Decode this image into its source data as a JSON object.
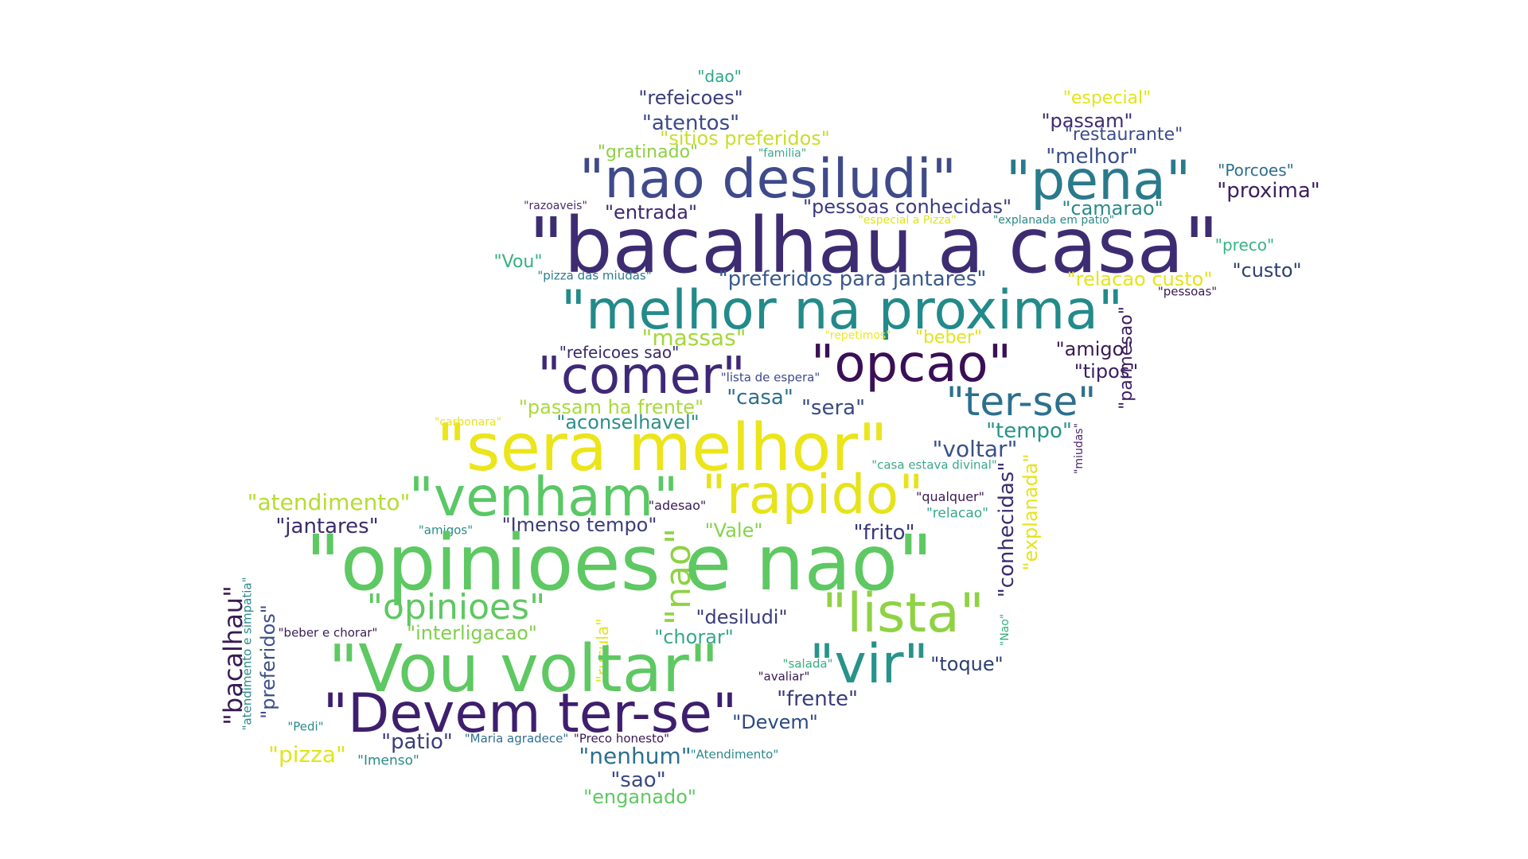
{
  "words": [
    {
      "text": "\"dao\"",
      "color": "#2aa88a"
    },
    {
      "text": "\"refeicoes\"",
      "color": "#3a3d7a"
    },
    {
      "text": "\"especial\"",
      "color": "#e2e41a"
    },
    {
      "text": "\"atentos\"",
      "color": "#3b4a86"
    },
    {
      "text": "\"passam\"",
      "color": "#3f2a70"
    },
    {
      "text": "\"sitios preferidos\"",
      "color": "#c8df2a"
    },
    {
      "text": "\"restaurante\"",
      "color": "#3d4c8a"
    },
    {
      "text": "\"gratinado\"",
      "color": "#8fcf45"
    },
    {
      "text": "\"familia\"",
      "color": "#3aa98a"
    },
    {
      "text": "\"melhor\"",
      "color": "#3b4f8a"
    },
    {
      "text": "\"nao desiludi\"",
      "color": "#3f4a8a"
    },
    {
      "text": "\"pena\"",
      "color": "#2a7a8c"
    },
    {
      "text": "\"Porcoes\"",
      "color": "#2f6f8e"
    },
    {
      "text": "\"proxima\"",
      "color": "#3b1f5e"
    },
    {
      "text": "\"razoaveis\"",
      "color": "#4a2a6a"
    },
    {
      "text": "\"entrada\"",
      "color": "#3d2870"
    },
    {
      "text": "\"pessoas conhecidas\"",
      "color": "#3b3a7e"
    },
    {
      "text": "\"camarao\"",
      "color": "#2a8a8a"
    },
    {
      "text": "\"especial a Pizza\"",
      "color": "#dfe21c"
    },
    {
      "text": "\"explanada em patio\"",
      "color": "#2a8a86"
    },
    {
      "text": "\"bacalhau a casa\"",
      "color": "#3e2c72"
    },
    {
      "text": "\"preco\"",
      "color": "#35b583"
    },
    {
      "text": "\"Vou\"",
      "color": "#35b07f"
    },
    {
      "text": "\"pizza das miudas\"",
      "color": "#2f7c8c"
    },
    {
      "text": "\"preferidos para jantares\"",
      "color": "#3a5a8a"
    },
    {
      "text": "\"relacao custo\"",
      "color": "#e6e31a"
    },
    {
      "text": "\"custo\"",
      "color": "#2c3f72"
    },
    {
      "text": "\"pessoas\"",
      "color": "#3a1a55"
    },
    {
      "text": "\"melhor na proxima\"",
      "color": "#238a8a"
    },
    {
      "text": "\"massas\"",
      "color": "#a5d739"
    },
    {
      "text": "\"repetimos\"",
      "color": "#f0e624"
    },
    {
      "text": "\"beber\"",
      "color": "#e2e41a"
    },
    {
      "text": "\"refeicoes sao\"",
      "color": "#3a2a6a"
    },
    {
      "text": "\"amigo\"",
      "color": "#3a1a55"
    },
    {
      "text": "\"parmesao\"",
      "color": "#3a1d60"
    },
    {
      "text": "\"comer\"",
      "color": "#3f2878"
    },
    {
      "text": "\"opcao\"",
      "color": "#3b0f55"
    },
    {
      "text": "\"tipos\"",
      "color": "#3a1d60"
    },
    {
      "text": "\"lista de espera\"",
      "color": "#3d4a8a"
    },
    {
      "text": "\"casa\"",
      "color": "#306e8e"
    },
    {
      "text": "\"sera\"",
      "color": "#3a4a82"
    },
    {
      "text": "\"ter-se\"",
      "color": "#2c708e"
    },
    {
      "text": "\"passam ha frente\"",
      "color": "#a8da3c"
    },
    {
      "text": "\"carbonara\"",
      "color": "#e6e31a"
    },
    {
      "text": "\"aconselhavel\"",
      "color": "#2a8f8a"
    },
    {
      "text": "\"tempo\"",
      "color": "#27938b"
    },
    {
      "text": "\"miudas\"",
      "color": "#4a2a6a"
    },
    {
      "text": "\"sera melhor\"",
      "color": "#ebe51a"
    },
    {
      "text": "\"voltar\"",
      "color": "#3b508a"
    },
    {
      "text": "\"casa estava divinal\"",
      "color": "#3aa98a"
    },
    {
      "text": "\"explanada\"",
      "color": "#e6e31a"
    },
    {
      "text": "\"conhecidas\"",
      "color": "#3b2c70"
    },
    {
      "text": "\"atendimento\"",
      "color": "#b4dd32"
    },
    {
      "text": "\"venham\"",
      "color": "#59c865"
    },
    {
      "text": "\"rapido\"",
      "color": "#e6e31a"
    },
    {
      "text": "\"qualquer\"",
      "color": "#3a1a55"
    },
    {
      "text": "\"adesao\"",
      "color": "#3a1a55"
    },
    {
      "text": "\"relacao\"",
      "color": "#35a88a"
    },
    {
      "text": "\"jantares\"",
      "color": "#3a2c6a"
    },
    {
      "text": "\"amigos\"",
      "color": "#2a8a8a"
    },
    {
      "text": "\"Imenso tempo\"",
      "color": "#3a3d7a"
    },
    {
      "text": "\"Vale\"",
      "color": "#84d44b"
    },
    {
      "text": "\"frito\"",
      "color": "#3a3a7a"
    },
    {
      "text": "\"nao\"",
      "color": "#8fd244"
    },
    {
      "text": "\"opinioes e nao\"",
      "color": "#5ec862"
    },
    {
      "text": "\"bacalhau\"",
      "color": "#3a1a55"
    },
    {
      "text": "\"atendimento e simpatia\"",
      "color": "#2a8a8a"
    },
    {
      "text": "\"preferidos\"",
      "color": "#3b4f8a"
    },
    {
      "text": "\"opinioes\"",
      "color": "#5ec862"
    },
    {
      "text": "\"rucula\"",
      "color": "#e6e31a"
    },
    {
      "text": "\"desiludi\"",
      "color": "#3a3d7a"
    },
    {
      "text": "\"lista\"",
      "color": "#8fd244"
    },
    {
      "text": "\"Nao\"",
      "color": "#35b07f"
    },
    {
      "text": "\"beber e chorar\"",
      "color": "#3a1a55"
    },
    {
      "text": "\"interligacao\"",
      "color": "#7fd04c"
    },
    {
      "text": "\"chorar\"",
      "color": "#35a88a"
    },
    {
      "text": "\"Vou voltar\"",
      "color": "#5ec862"
    },
    {
      "text": "\"vir\"",
      "color": "#27938b"
    },
    {
      "text": "\"salada\"",
      "color": "#35b07f"
    },
    {
      "text": "\"toque\"",
      "color": "#2c3f72"
    },
    {
      "text": "\"avaliar\"",
      "color": "#3a1a55"
    },
    {
      "text": "\"Devem ter-se\"",
      "color": "#3e1f6e"
    },
    {
      "text": "\"frente\"",
      "color": "#3a3d7a"
    },
    {
      "text": "\"Devem\"",
      "color": "#2c4a82"
    },
    {
      "text": "\"Pedi\"",
      "color": "#2a8a8a"
    },
    {
      "text": "\"patio\"",
      "color": "#3a3d7a"
    },
    {
      "text": "\"Maria agradece\"",
      "color": "#2f6f8e"
    },
    {
      "text": "\"Preco honesto\"",
      "color": "#3a1a55"
    },
    {
      "text": "\"pizza\"",
      "color": "#e2e41a"
    },
    {
      "text": "\"Imenso\"",
      "color": "#2a8a8a"
    },
    {
      "text": "\"nenhum\"",
      "color": "#2c708e"
    },
    {
      "text": "\"Atendimento\"",
      "color": "#2a8a8a"
    },
    {
      "text": "\"sao\"",
      "color": "#3a4a82"
    },
    {
      "text": "\"enganado\"",
      "color": "#5ec862"
    }
  ]
}
